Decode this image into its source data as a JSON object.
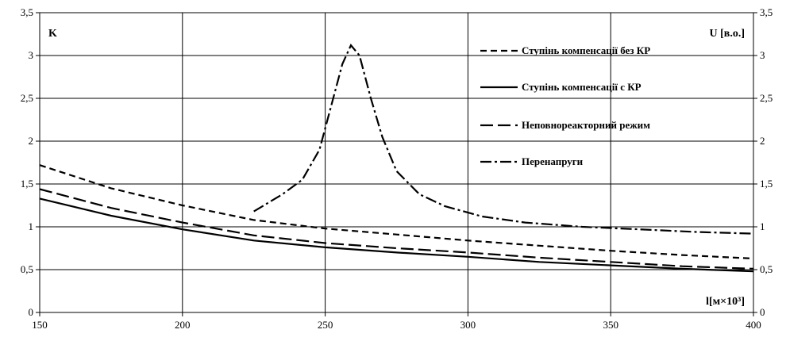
{
  "chart_data": {
    "type": "line",
    "xlabel": "l[м×10³]",
    "ylabel_left": "K",
    "ylabel_right": "U [в.о.]",
    "xlim": [
      150,
      400
    ],
    "ylim": [
      0,
      3.5
    ],
    "x_ticks": [
      "150",
      "200",
      "250",
      "300",
      "350",
      "400"
    ],
    "y_ticks": [
      "0",
      "0,5",
      "1",
      "1,5",
      "2",
      "2,5",
      "3",
      "3,5"
    ],
    "grid": true,
    "legend_position": "top-right",
    "series": [
      {
        "name": "Ступінь компенсації без КР",
        "dash": "8,5",
        "x": [
          150,
          175,
          200,
          225,
          250,
          275,
          300,
          325,
          350,
          375,
          400
        ],
        "y": [
          1.72,
          1.45,
          1.25,
          1.08,
          0.98,
          0.91,
          0.84,
          0.78,
          0.72,
          0.67,
          0.63
        ]
      },
      {
        "name": "Ступінь компенсації с КР",
        "dash": "",
        "x": [
          150,
          175,
          200,
          225,
          250,
          275,
          300,
          325,
          350,
          375,
          400
        ],
        "y": [
          1.33,
          1.13,
          0.97,
          0.84,
          0.76,
          0.7,
          0.65,
          0.59,
          0.55,
          0.51,
          0.48
        ]
      },
      {
        "name": "Неповнореакторний режим",
        "dash": "16,6",
        "x": [
          150,
          175,
          200,
          225,
          250,
          275,
          300,
          325,
          350,
          375,
          400
        ],
        "y": [
          1.44,
          1.22,
          1.05,
          0.9,
          0.81,
          0.75,
          0.7,
          0.64,
          0.59,
          0.54,
          0.51
        ]
      },
      {
        "name": "Перенапруги",
        "dash": "14,4,3,4",
        "x": [
          225,
          235,
          242,
          248,
          252,
          256,
          259,
          262,
          266,
          270,
          275,
          283,
          292,
          305,
          320,
          340,
          360,
          380,
          400
        ],
        "y": [
          1.18,
          1.38,
          1.55,
          1.9,
          2.4,
          2.9,
          3.12,
          3.0,
          2.5,
          2.05,
          1.65,
          1.38,
          1.24,
          1.12,
          1.05,
          1.0,
          0.97,
          0.94,
          0.92
        ]
      }
    ]
  }
}
